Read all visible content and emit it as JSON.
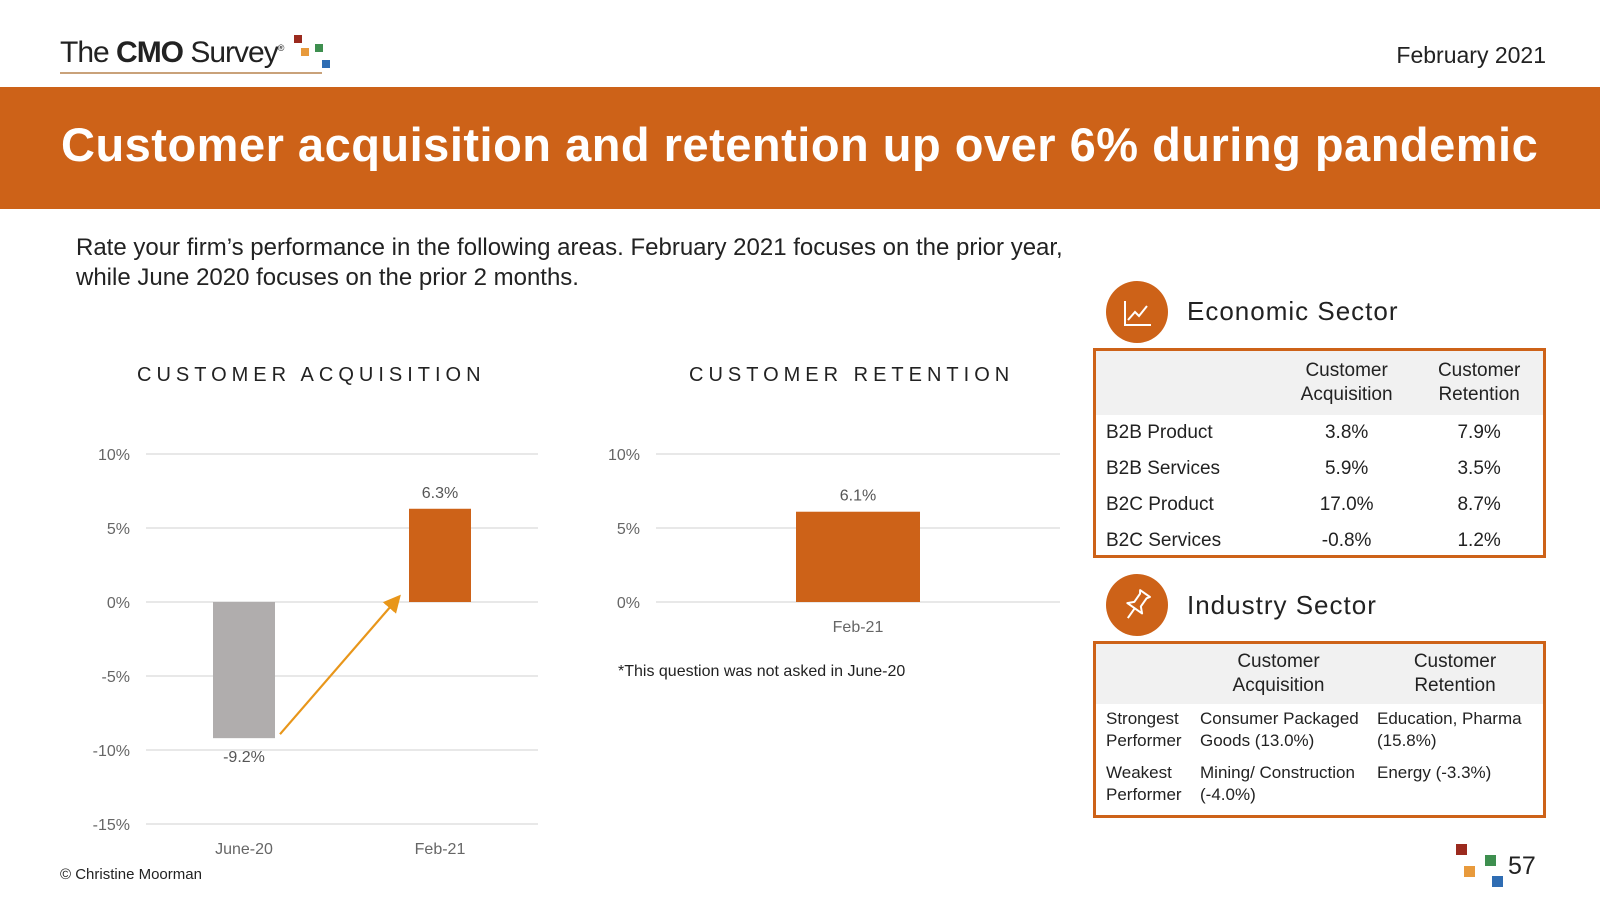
{
  "header": {
    "logo_prefix": "The ",
    "logo_bold": "CMO",
    "logo_suffix": " Survey",
    "logo_reg": "®",
    "date": "February 2021"
  },
  "banner": {
    "title": "Customer acquisition and retention up over 6% during pandemic"
  },
  "question": "Rate your firm’s performance in the following areas. February 2021 focuses on the prior year, while June 2020 focuses on the prior 2 months.",
  "chart_data": [
    {
      "type": "bar",
      "title": "CUSTOMER ACQUISITION",
      "categories": [
        "June-20",
        "Feb-21"
      ],
      "values": [
        -9.2,
        6.3
      ],
      "data_labels": [
        "-9.2%",
        "6.3%"
      ],
      "bar_colors": [
        "#b0adad",
        "#cd6218"
      ],
      "ylim": [
        -15,
        10
      ],
      "yticks": [
        10,
        5,
        0,
        -5,
        -10,
        -15
      ],
      "ytick_labels": [
        "10%",
        "5%",
        "0%",
        "-5%",
        "-10%",
        "-15%"
      ],
      "grid": true,
      "annotation": "upward arrow from June-20 to Feb-21"
    },
    {
      "type": "bar",
      "title": "CUSTOMER RETENTION",
      "categories": [
        "Feb-21"
      ],
      "values": [
        6.1
      ],
      "data_labels": [
        "6.1%"
      ],
      "bar_colors": [
        "#cd6218"
      ],
      "ylim": [
        0,
        10
      ],
      "yticks": [
        10,
        5,
        0
      ],
      "ytick_labels": [
        "10%",
        "5%",
        "0%"
      ],
      "grid": true,
      "footnote": "*This question was not asked in June-20"
    }
  ],
  "economic": {
    "title": "Economic Sector",
    "icon": "line-chart-icon",
    "headers": [
      "",
      "Customer Acquisition",
      "Customer Retention"
    ],
    "rows": [
      [
        "B2B Product",
        "3.8%",
        "7.9%"
      ],
      [
        "B2B Services",
        "5.9%",
        "3.5%"
      ],
      [
        "B2C Product",
        "17.0%",
        "8.7%"
      ],
      [
        "B2C Services",
        "-0.8%",
        "1.2%"
      ]
    ]
  },
  "industry": {
    "title": "Industry Sector",
    "icon": "pushpin-icon",
    "headers": [
      "",
      "Customer Acquisition",
      "Customer Retention"
    ],
    "rows": [
      [
        "Strongest Performer",
        "Consumer Packaged Goods (13.0%)",
        "Education, Pharma (15.8%)"
      ],
      [
        "Weakest Performer",
        "Mining/ Construction (-4.0%)",
        "Energy (-3.3%)"
      ]
    ]
  },
  "footer": {
    "copyright": "© Christine Moorman",
    "page": "57"
  },
  "colors": {
    "accent": "#cd6218",
    "gray_bar": "#b0adad",
    "arrow": "#e8961a",
    "grid": "#d9d9d9"
  }
}
